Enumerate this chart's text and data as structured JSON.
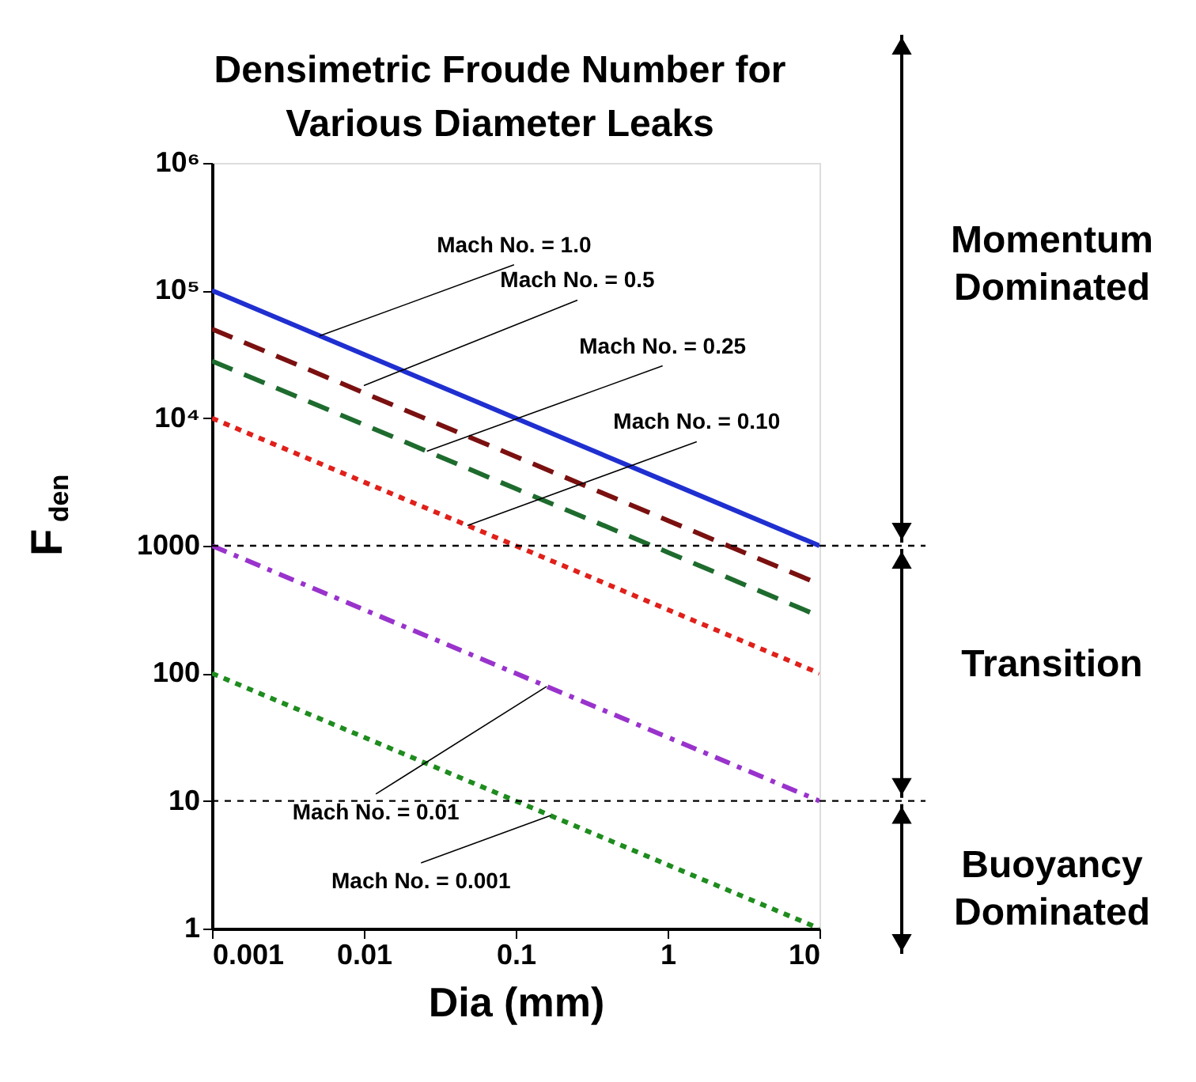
{
  "chart_data": {
    "type": "line",
    "title": "Densimetric Froude Number for\nVarious Diameter Leaks",
    "xlabel": "Dia (mm)",
    "ylabel": "F$_{den}$",
    "log": "xy",
    "xlim": [
      0.001,
      10
    ],
    "xticks": [
      0.001,
      0.01,
      0.1,
      1,
      10
    ],
    "ylim": [
      1,
      1000000
    ],
    "yticks": [
      1,
      10,
      100,
      1000,
      {
        "value": 10000,
        "label": "10⁴"
      },
      {
        "value": 100000,
        "label": "10⁵"
      },
      {
        "value": 1000000,
        "label": "10⁶"
      }
    ],
    "grid": false,
    "marker": "none",
    "x": [
      0.001,
      0.01,
      0.1,
      1,
      10
    ],
    "series": [
      {
        "color": "#1f2fd0",
        "line_style": "solid",
        "values": [
          100000,
          31600,
          10000,
          3160,
          1000
        ]
      },
      {
        "color": "#7a1010",
        "line_style": "dashed",
        "values": [
          50000,
          15800,
          5000,
          1580,
          500
        ]
      },
      {
        "color": "#1e6b2e",
        "line_style": "dashed",
        "values": [
          28000,
          8900,
          2800,
          890,
          280
        ]
      },
      {
        "color": "#e0201a",
        "line_style": "dotted",
        "values": [
          10000,
          3160,
          1000,
          316,
          100
        ]
      },
      {
        "color": "#9933cc",
        "line_style": "dashdot",
        "values": [
          1000,
          316,
          100,
          31.6,
          10
        ]
      },
      {
        "color": "#1e8c1e",
        "line_style": "dotted",
        "values": [
          100,
          31.6,
          10,
          3.16,
          1
        ]
      }
    ],
    "ref_lines": [
      {
        "axis": "y",
        "value": 1000,
        "line_style": "dotted",
        "color": "#000000"
      },
      {
        "axis": "y",
        "value": 10,
        "line_style": "dotted",
        "color": "#000000"
      }
    ],
    "annotations": [
      {
        "text": "Mach No. = 1.0",
        "x": 0.0051,
        "y": 44000
      },
      {
        "text": "Mach No. = 0.5",
        "x": 0.01,
        "y": 18000
      },
      {
        "text": "Mach No. = 0.25",
        "x": 0.026,
        "y": 5500
      },
      {
        "text": "Mach No. = 0.10",
        "x": 0.048,
        "y": 1440
      },
      {
        "text": "Mach No. = 0.01",
        "x": 0.16,
        "y": 79
      },
      {
        "text": "Mach No. = 0.001",
        "x": 0.17,
        "y": 7.7
      },
      "Momentum Dominated",
      "Transition",
      "Buoyancy Dominated"
    ]
  }
}
